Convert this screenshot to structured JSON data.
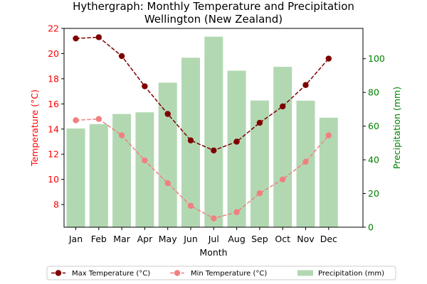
{
  "chart_data": {
    "type": "bar+line",
    "title_lines": [
      "Hythergraph: Monthly Temperature and Precipitation",
      "Wellington (New Zealand)"
    ],
    "xlabel": "Month",
    "ylabel_left": "Temperature (°C)",
    "ylabel_right": "Precipitation (mm)",
    "categories": [
      "Jan",
      "Feb",
      "Mar",
      "Apr",
      "May",
      "Jun",
      "Jul",
      "Aug",
      "Sep",
      "Oct",
      "Nov",
      "Dec"
    ],
    "ylim_left": [
      6.2,
      22
    ],
    "yticks_left": [
      8,
      10,
      12,
      14,
      16,
      18,
      20,
      22
    ],
    "ylim_right": [
      0,
      118
    ],
    "yticks_right": [
      0,
      20,
      40,
      60,
      80,
      100
    ],
    "grid": false,
    "legend_position": "bottom-center",
    "series": [
      {
        "name": "Max Temperature (°C)",
        "kind": "line",
        "axis": "left",
        "color": "#7f0000",
        "values": [
          21.2,
          21.3,
          19.8,
          17.4,
          15.2,
          13.1,
          12.3,
          13.0,
          14.5,
          15.8,
          17.5,
          19.6
        ]
      },
      {
        "name": "Min Temperature (°C)",
        "kind": "line",
        "axis": "left",
        "color": "#f08080",
        "values": [
          14.7,
          14.8,
          13.5,
          11.5,
          9.7,
          7.9,
          6.9,
          7.4,
          8.9,
          10.0,
          11.4,
          13.5
        ]
      },
      {
        "name": "Precipitation (mm)",
        "kind": "bar",
        "axis": "right",
        "color": "#b2d8b2",
        "values": [
          58.6,
          61.2,
          67.2,
          68.2,
          85.8,
          100.6,
          113.1,
          92.9,
          75.2,
          95.2,
          75.1,
          65.0
        ]
      }
    ]
  }
}
